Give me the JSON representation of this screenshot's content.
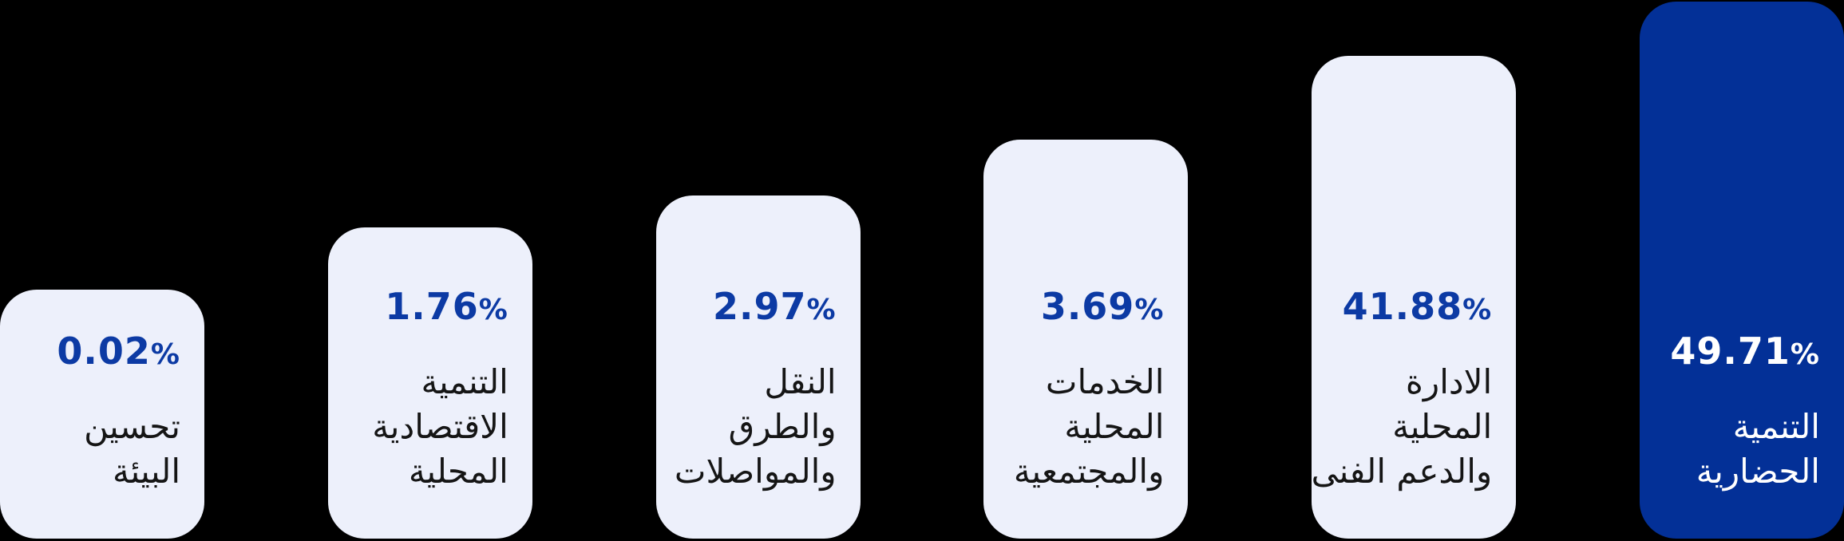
{
  "chart_data": {
    "type": "bar",
    "title": "",
    "unit": "%",
    "legend_position": "none",
    "grid": false,
    "axes_visible": false,
    "note": "stylized infographic bar chart, bar heights form an ascending staircase and are not linearly proportional to values; last bar highlighted",
    "categories": [
      "تحسين البيئة",
      "التنمية الاقتصادية المحلية",
      "النقل والطرق والمواصلات",
      "الخدمات المحلية والمجتمعية",
      "الادارة المحلية والدعم الفنى",
      "التنمية الحضارية"
    ],
    "values": [
      0.02,
      1.76,
      2.97,
      3.69,
      41.88,
      49.71
    ]
  },
  "colors": {
    "background": "#000000",
    "bar_light": "#EDF0FB",
    "bar_highlight": "#033097",
    "value_text": "#0C3AA4",
    "value_text_on_highlight": "#FFFFFF",
    "label_text": "#151515",
    "label_text_on_highlight": "#FFFFFF"
  },
  "bars": [
    {
      "value": "0.02",
      "unit": "%",
      "label": "تحسين البيئة",
      "label_lines": [
        "تحسين",
        "البيئة"
      ],
      "highlighted": false
    },
    {
      "value": "1.76",
      "unit": "%",
      "label": "التنمية الاقتصادية المحلية",
      "label_lines": [
        "التنمية",
        "الاقتصادية",
        "المحلية"
      ],
      "highlighted": false
    },
    {
      "value": "2.97",
      "unit": "%",
      "label": "النقل والطرق والمواصلات",
      "label_lines": [
        "النقل",
        "والطرق",
        "والمواصلات"
      ],
      "highlighted": false
    },
    {
      "value": "3.69",
      "unit": "%",
      "label": "الخدمات المحلية والمجتمعية",
      "label_lines": [
        "الخدمات",
        "المحلية",
        "والمجتمعية"
      ],
      "highlighted": false
    },
    {
      "value": "41.88",
      "unit": "%",
      "label": "الادارة المحلية والدعم الفنى",
      "label_lines": [
        "الادارة",
        "المحلية",
        "والدعم الفنى"
      ],
      "highlighted": false
    },
    {
      "value": "49.71",
      "unit": "%",
      "label": "التنمية الحضارية",
      "label_lines": [
        "التنمية",
        "الحضارية"
      ],
      "highlighted": true
    }
  ]
}
